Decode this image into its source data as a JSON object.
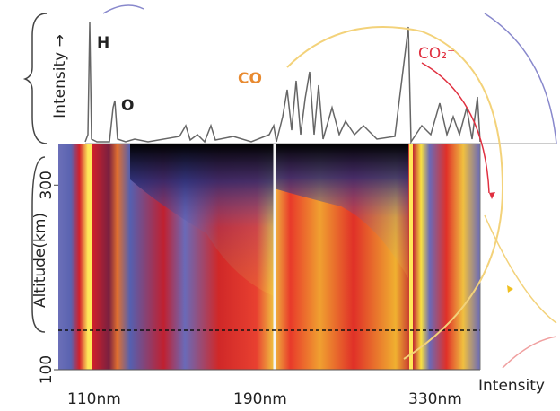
{
  "chart_data": {
    "type": "spectrum-altitude-map",
    "y_label": "Altitude(km)",
    "intensity_label_top": "Intensity →",
    "intensity_label_right": "Intensity",
    "annotations": [
      "H",
      "O",
      "CO",
      "CO₂⁺"
    ],
    "categories": [
      "110nm",
      "190nm",
      "330nm"
    ],
    "ylim": [
      100,
      345
    ],
    "yticks": [
      100,
      300
    ]
  }
}
